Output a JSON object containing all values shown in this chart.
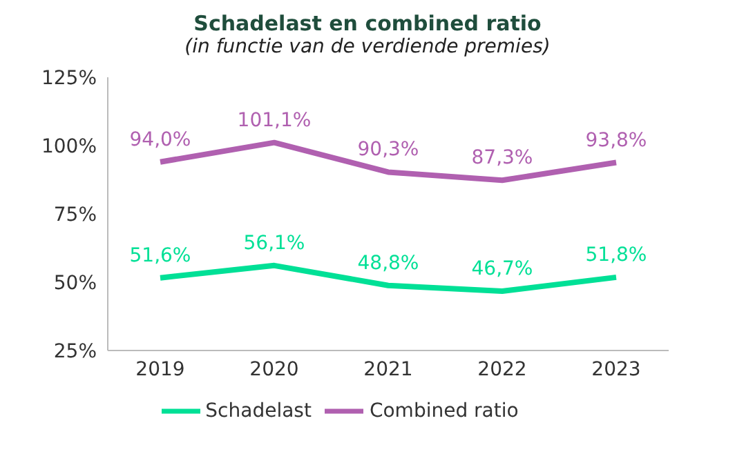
{
  "chart_data": {
    "type": "line",
    "title": "Schadelast en combined ratio",
    "subtitle": "(in functie van de verdiende premies)",
    "categories": [
      "2019",
      "2020",
      "2021",
      "2022",
      "2023"
    ],
    "series": [
      {
        "name": "Schadelast",
        "color": "#00e096",
        "values": [
          51.6,
          56.1,
          48.8,
          46.7,
          51.8
        ],
        "value_labels": [
          "51,6%",
          "56,1%",
          "48,8%",
          "46,7%",
          "51,8%"
        ]
      },
      {
        "name": "Combined ratio",
        "color": "#b060b0",
        "values": [
          94.0,
          101.1,
          90.3,
          87.3,
          93.8
        ],
        "value_labels": [
          "94,0%",
          "101,1%",
          "90,3%",
          "87,3%",
          "93,8%"
        ]
      }
    ],
    "ylim": [
      25,
      125
    ],
    "yticks": [
      {
        "value": 25,
        "label": "25%"
      },
      {
        "value": 50,
        "label": "50%"
      },
      {
        "value": 75,
        "label": "75%"
      },
      {
        "value": 100,
        "label": "100%"
      },
      {
        "value": 125,
        "label": "125%"
      }
    ],
    "grid": false,
    "legend": "bottom",
    "marker": "none",
    "line_style": "solid"
  }
}
